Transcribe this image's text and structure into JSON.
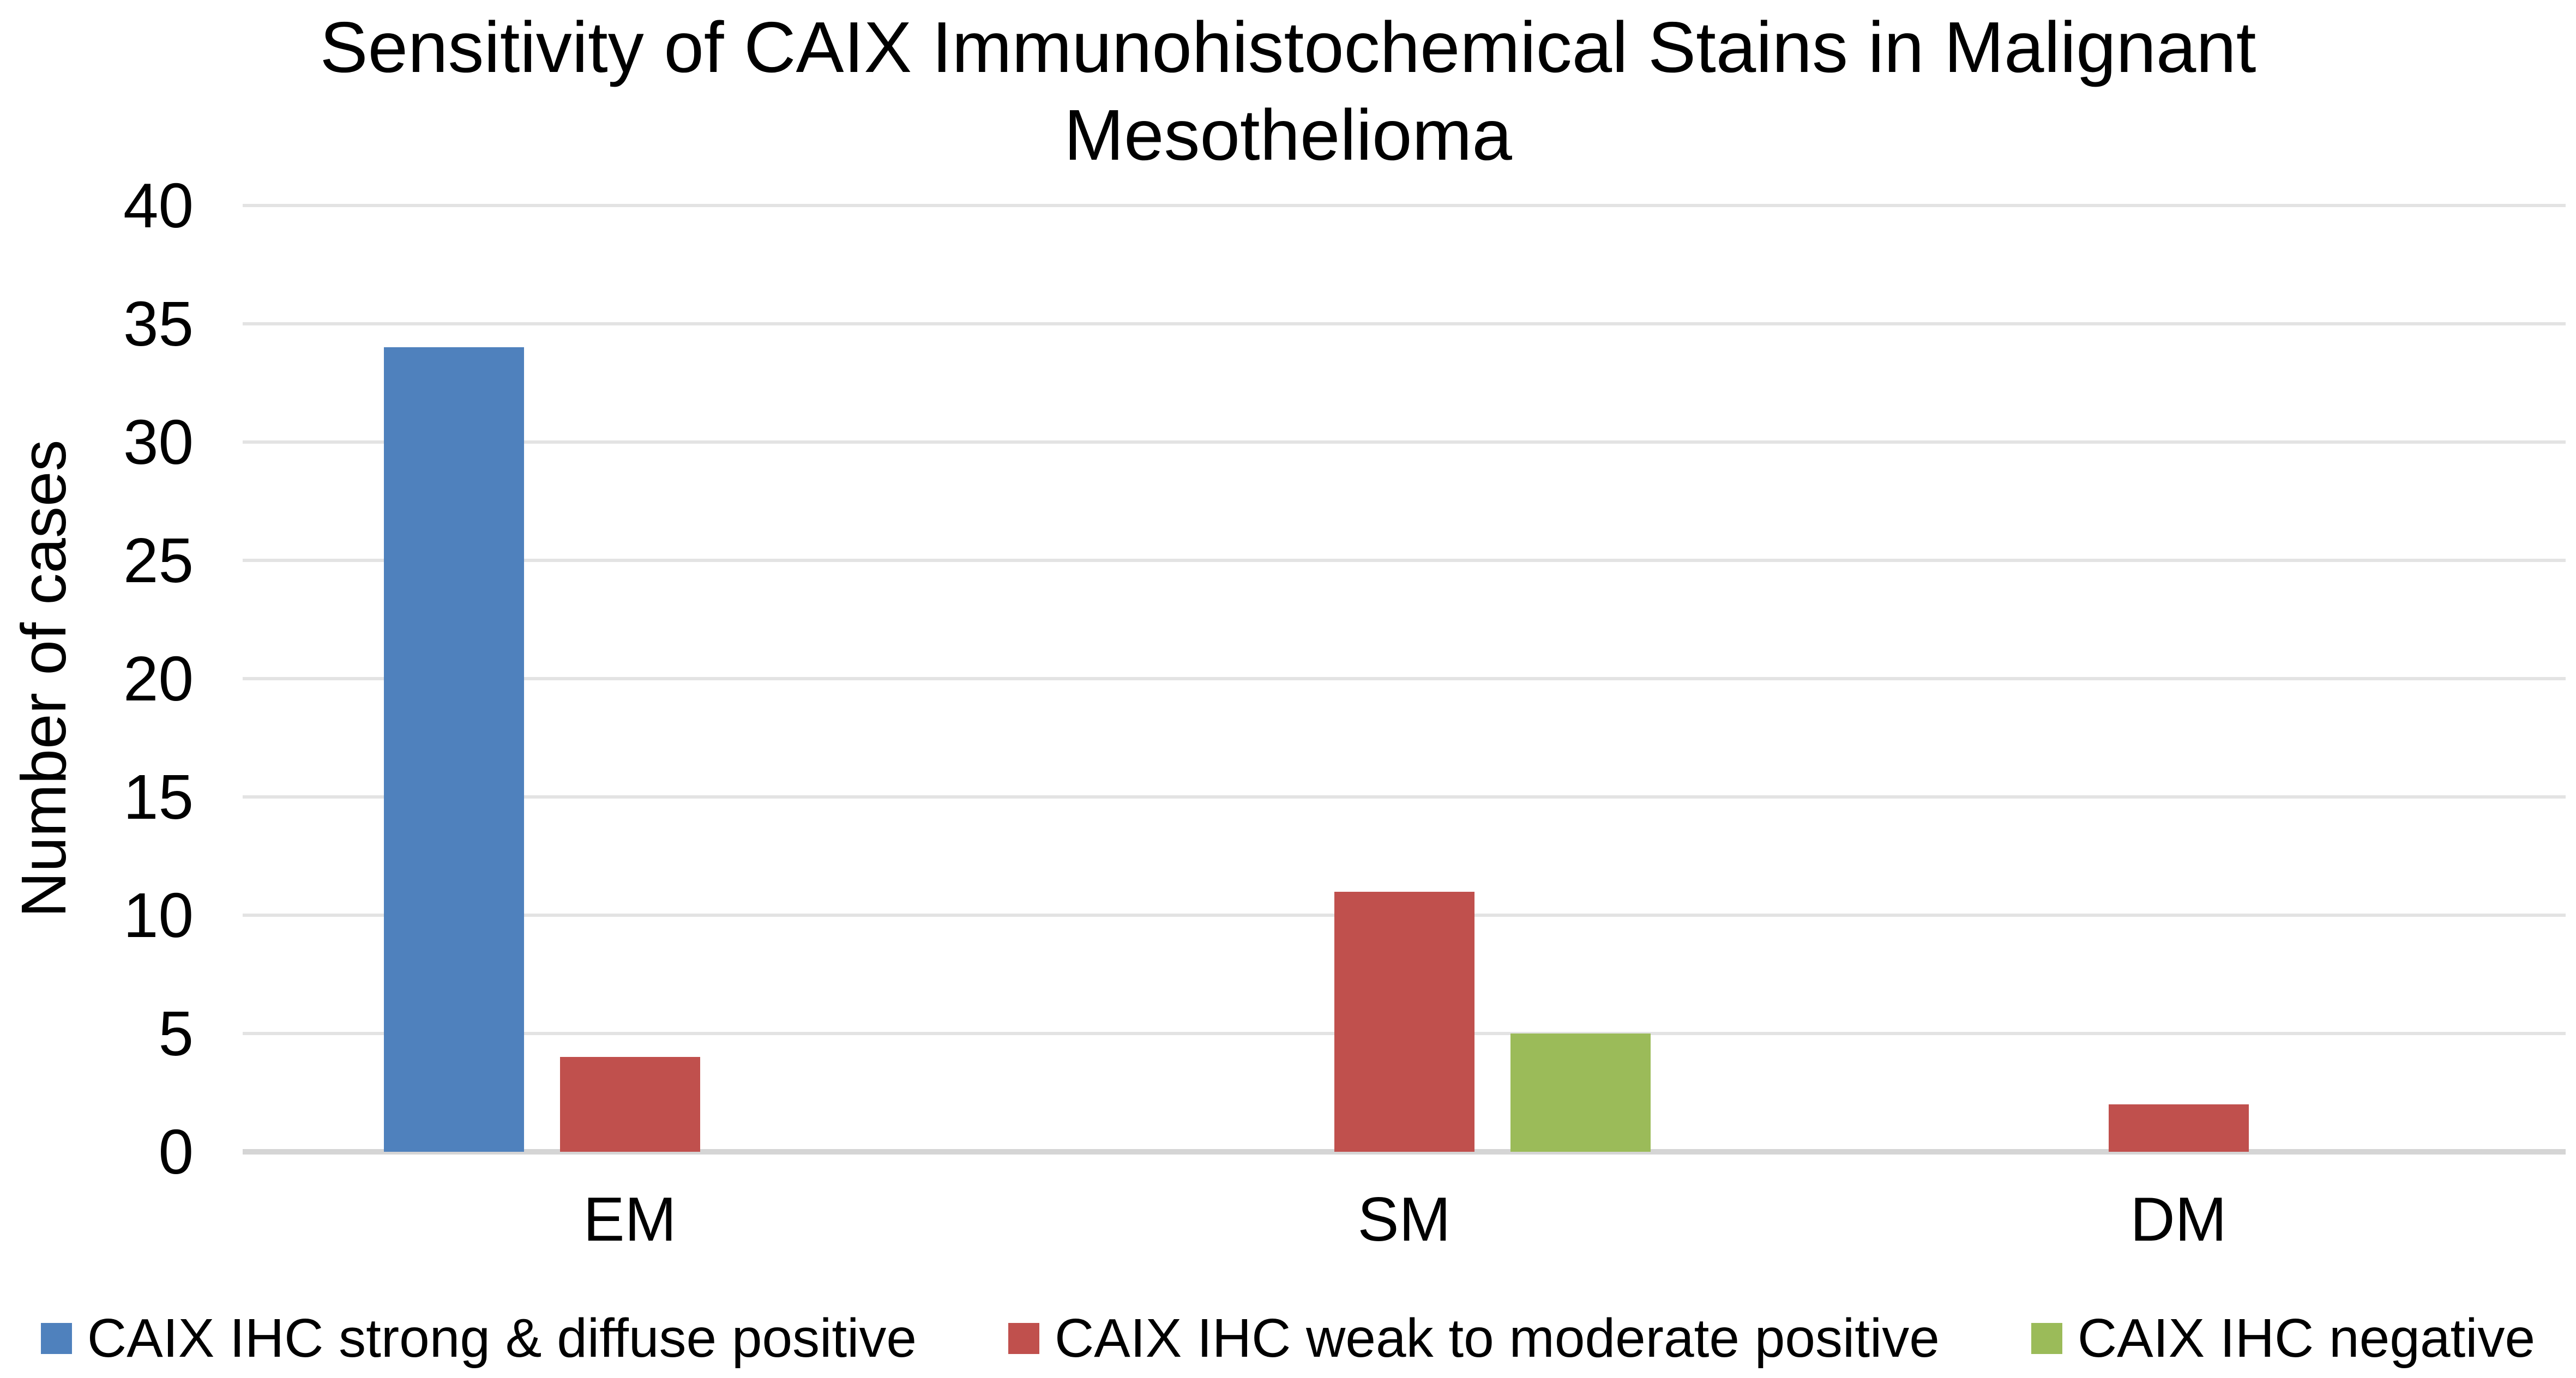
{
  "chart_data": {
    "type": "bar",
    "title": "Sensitivity of CAIX Immunohistochemical Stains in Malignant Mesothelioma",
    "title_lines": [
      "Sensitivity of CAIX Immunohistochemical Stains in Malignant",
      "Mesothelioma"
    ],
    "xlabel": "",
    "ylabel": "Number of cases",
    "ylim": [
      0,
      40
    ],
    "yticks": [
      0,
      5,
      10,
      15,
      20,
      25,
      30,
      35,
      40
    ],
    "grid": true,
    "legend_position": "bottom",
    "categories": [
      "EM",
      "SM",
      "DM"
    ],
    "series": [
      {
        "name": "CAIX IHC strong & diffuse positive",
        "color": "#4F81BD",
        "values": [
          34,
          0,
          0
        ]
      },
      {
        "name": "CAIX IHC weak to moderate positive",
        "color": "#C0504D",
        "values": [
          4,
          11,
          2
        ]
      },
      {
        "name": "CAIX IHC negative",
        "color": "#9BBB59",
        "values": [
          0,
          5,
          0
        ]
      }
    ],
    "colors": {
      "gridline": "#E3E3E3",
      "baseline": "#D5D5D5",
      "text": "#000000",
      "background": "#FFFFFF"
    }
  }
}
